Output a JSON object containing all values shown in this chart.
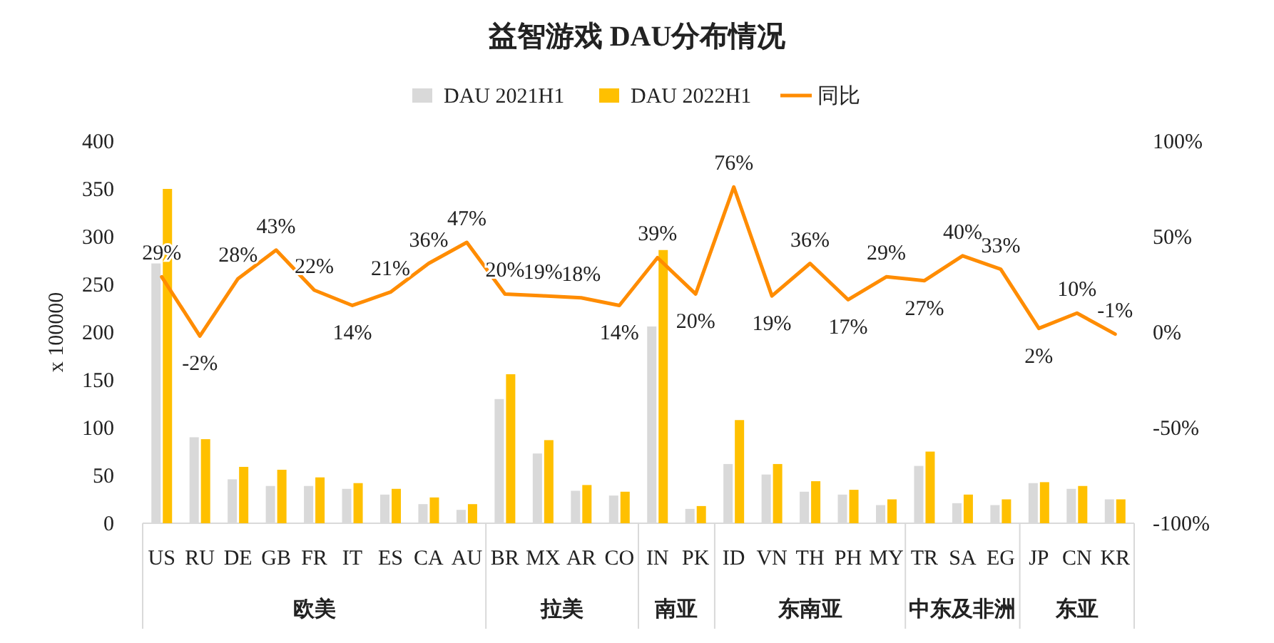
{
  "chart_data": {
    "type": "bar",
    "title": "益智游戏 DAU分布情况",
    "ylabel": "x 100000",
    "legend": "top",
    "categories": [
      "US",
      "RU",
      "DE",
      "GB",
      "FR",
      "IT",
      "ES",
      "CA",
      "AU",
      "BR",
      "MX",
      "AR",
      "CO",
      "IN",
      "PK",
      "ID",
      "VN",
      "TH",
      "PH",
      "MY",
      "TR",
      "SA",
      "EG",
      "JP",
      "CN",
      "KR"
    ],
    "series": [
      {
        "name": "DAU 2021H1",
        "color": "#d9d9d9",
        "values": [
          272,
          90,
          46,
          39,
          39,
          36,
          30,
          20,
          14,
          130,
          73,
          34,
          29,
          206,
          15,
          62,
          51,
          33,
          30,
          19,
          60,
          21,
          19,
          42,
          36,
          25
        ]
      },
      {
        "name": "DAU 2022H1",
        "color": "#ffc000",
        "values": [
          350,
          88,
          59,
          56,
          48,
          42,
          36,
          27,
          20,
          156,
          87,
          40,
          33,
          286,
          18,
          108,
          62,
          44,
          35,
          25,
          75,
          30,
          25,
          43,
          39,
          25
        ]
      },
      {
        "name": "同比",
        "type": "line",
        "axis": "y2",
        "color": "#ff8c00",
        "values": [
          29,
          -2,
          28,
          43,
          22,
          14,
          21,
          36,
          47,
          20,
          19,
          18,
          14,
          39,
          20,
          76,
          19,
          36,
          17,
          29,
          27,
          40,
          33,
          2,
          10,
          -1
        ],
        "value_labels": [
          "29%",
          "-2%",
          "28%",
          "43%",
          "22%",
          "14%",
          "21%",
          "36%",
          "47%",
          "20%",
          "19%",
          "18%",
          "14%",
          "39%",
          "20%",
          "76%",
          "19%",
          "36%",
          "17%",
          "29%",
          "27%",
          "40%",
          "33%",
          "2%",
          "10%",
          "-1%"
        ]
      }
    ],
    "ylim": [
      0,
      400
    ],
    "yticks": [
      0,
      50,
      100,
      150,
      200,
      250,
      300,
      350,
      400
    ],
    "y2lim": [
      -100,
      100
    ],
    "y2ticks": [
      {
        "value": -100,
        "label": "-100%"
      },
      {
        "value": -50,
        "label": "-50%"
      },
      {
        "value": 0,
        "label": "0%"
      },
      {
        "value": 50,
        "label": "50%"
      },
      {
        "value": 100,
        "label": "100%"
      }
    ],
    "annotations": [
      "欧美",
      "拉美",
      "南亚",
      "东南亚",
      "中东及非洲",
      "东亚"
    ]
  }
}
